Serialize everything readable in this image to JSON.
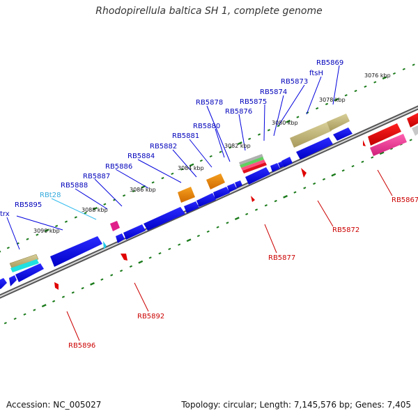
{
  "title": "Rhodopirellula baltica SH 1, complete genome",
  "accession": "Accession: NC_005027",
  "summary": "Topology: circular; Length: 7,145,576 bp; Genes: 7,405",
  "colors": {
    "cds": "#0000ee",
    "rna": "#dd0000",
    "trna": "#22b8e8",
    "backbone": "#888888",
    "ticks": "#1a7a1a",
    "label_top": "#0000bb",
    "label_bottom": "#cc0000",
    "label_trna": "#22aadd"
  },
  "kbp_labels": [
    "3076 kbp",
    "3078 kbp",
    "3080 kbp",
    "3082 kbp",
    "3084 kbp",
    "3086 kbp",
    "3088 kbp",
    "3090 kbp"
  ],
  "top_labels": [
    "RB5869",
    "ftsH",
    "RB5873",
    "RB5874",
    "RB5875",
    "RB5876",
    "RB5878",
    "RB5880",
    "RB5881",
    "RB5882",
    "RB5884",
    "RB5886",
    "RB5887",
    "RB5888",
    "RBt28",
    "RB5895",
    "trx"
  ],
  "bottom_labels": [
    "RB5867",
    "RB5872",
    "RB5877",
    "RB5892",
    "RB5896"
  ]
}
